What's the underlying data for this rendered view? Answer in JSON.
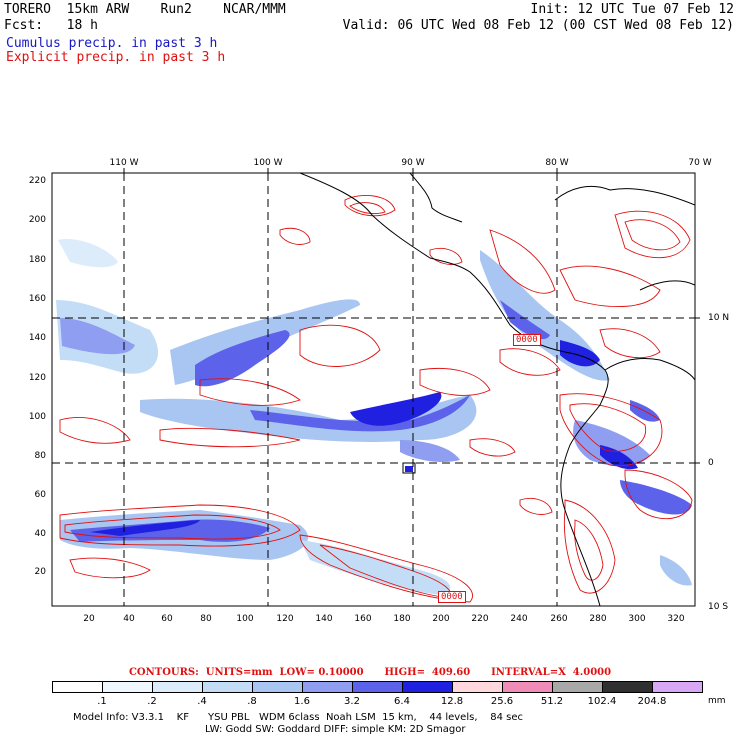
{
  "header": {
    "line1_left": "TORERO  15km ARW    Run2    NCAR/MMM",
    "line1_right": "Init: 12 UTC Tue 07 Feb 12",
    "line2_left": "Fcst:   18 h",
    "line2_right": "Valid: 06 UTC Wed 08 Feb 12 (00 CST Wed 08 Feb 12)",
    "legend_cumulus": "Cumulus precip. in past 3 h",
    "legend_explicit": "Explicit precip. in past 3 h"
  },
  "map": {
    "lon_labels": [
      "110 W",
      "100 W",
      "90 W",
      "80 W",
      "70 W"
    ],
    "lat_labels": [
      "10 N",
      "0",
      "10 S"
    ],
    "grid_x_labels": [
      "20",
      "40",
      "60",
      "80",
      "100",
      "120",
      "140",
      "160",
      "180",
      "200",
      "220",
      "240",
      "260",
      "280",
      "300",
      "320"
    ],
    "grid_y_labels": [
      "220",
      "200",
      "180",
      "160",
      "140",
      "120",
      "100",
      "80",
      "60",
      "40",
      "20"
    ],
    "contour_box_labels": [
      "0000",
      "0000"
    ]
  },
  "colorbar": {
    "contours_line": "CONTOURS:  UNITS=mm  LOW= 0.10000      HIGH=  409.60      INTERVAL=X  4.0000",
    "levels": [
      ".1",
      ".2",
      ".4",
      ".8",
      "1.6",
      "3.2",
      "6.4",
      "12.8",
      "25.6",
      "51.2",
      "102.4",
      "204.8"
    ],
    "colors": [
      "#ffffff",
      "#f0f8ff",
      "#dcecfa",
      "#c4ddf6",
      "#a9c6f2",
      "#8f9ef0",
      "#5d62ea",
      "#2020e0",
      "#ffd8de",
      "#f08cb8",
      "#a8a8a8",
      "#303030",
      "#d8a8f4"
    ],
    "units": "mm"
  },
  "footer": {
    "line1": "Model Info: V3.3.1    KF      YSU PBL   WDM 6class  Noah LSM  15 km,    44 levels,    84 sec",
    "line2": "LW: Godd SW: Goddard DIFF: simple KM: 2D Smagor"
  }
}
